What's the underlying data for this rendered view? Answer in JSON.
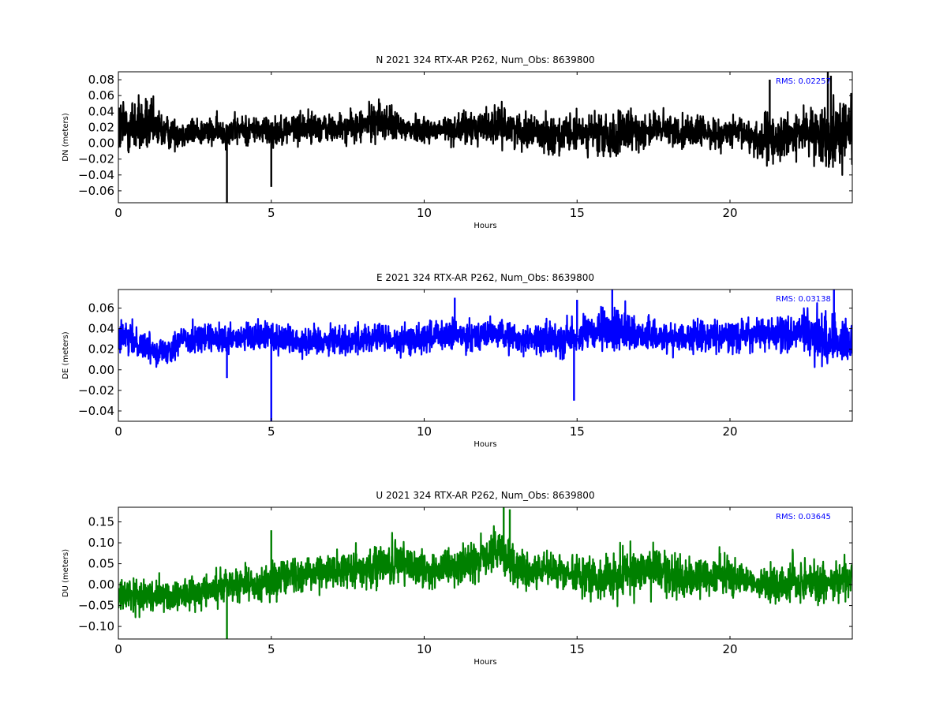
{
  "chart_data": [
    {
      "type": "line",
      "title": "N 2021 324 RTX-AR  P262, Num_Obs: 8639800",
      "xlabel": "Hours",
      "ylabel": "DN (meters)",
      "xlim": [
        0,
        24
      ],
      "ylim": [
        -0.075,
        0.09
      ],
      "xticks": [
        0,
        5,
        10,
        15,
        20
      ],
      "xtick_labels": [
        "0",
        "5",
        "10",
        "15",
        "20"
      ],
      "yticks": [
        -0.06,
        -0.04,
        -0.02,
        0.0,
        0.02,
        0.04,
        0.06,
        0.08
      ],
      "ytick_labels": [
        "−0.06",
        "−0.04",
        "−0.02",
        "0.00",
        "0.02",
        "0.04",
        "0.06",
        "0.08"
      ],
      "annotation": "RMS:  0.02257",
      "color": "#000000",
      "grid": false,
      "series": [
        {
          "x": [
            0,
            0.5,
            1,
            1.5,
            2,
            2.5,
            3,
            3.5,
            4,
            4.5,
            5,
            5.5,
            6,
            6.5,
            7,
            7.5,
            8,
            8.5,
            9,
            9.5,
            10,
            10.5,
            11,
            11.5,
            12,
            12.5,
            13,
            13.5,
            14,
            14.5,
            15,
            15.5,
            16,
            16.5,
            17,
            17.5,
            18,
            18.5,
            19,
            19.5,
            20,
            20.5,
            21,
            21.5,
            22,
            22.5,
            23,
            23.5,
            24
          ],
          "y": [
            0.02,
            0.022,
            0.02,
            0.015,
            0.012,
            0.015,
            0.014,
            0.015,
            0.016,
            0.018,
            0.015,
            0.018,
            0.02,
            0.02,
            0.018,
            0.019,
            0.022,
            0.03,
            0.022,
            0.018,
            0.018,
            0.016,
            0.018,
            0.019,
            0.022,
            0.022,
            0.018,
            0.014,
            0.012,
            0.01,
            0.012,
            0.015,
            0.005,
            0.012,
            0.015,
            0.018,
            0.016,
            0.015,
            0.015,
            0.012,
            0.012,
            0.012,
            0.005,
            0.005,
            0.01,
            0.015,
            0.01,
            0.015,
            0.02
          ],
          "amp": [
            0.035,
            0.035,
            0.03,
            0.02,
            0.015,
            0.016,
            0.015,
            0.016,
            0.016,
            0.016,
            0.016,
            0.016,
            0.017,
            0.017,
            0.016,
            0.016,
            0.018,
            0.022,
            0.018,
            0.016,
            0.015,
            0.015,
            0.016,
            0.018,
            0.02,
            0.02,
            0.018,
            0.018,
            0.02,
            0.022,
            0.02,
            0.02,
            0.028,
            0.024,
            0.02,
            0.019,
            0.018,
            0.018,
            0.017,
            0.016,
            0.016,
            0.017,
            0.026,
            0.028,
            0.022,
            0.022,
            0.03,
            0.04,
            0.035
          ]
        }
      ],
      "spikes": [
        {
          "x": 3.55,
          "y": -0.075
        },
        {
          "x": 5.0,
          "y": -0.055
        },
        {
          "x": 21.3,
          "y": 0.08
        },
        {
          "x": 23.2,
          "y": 0.09
        },
        {
          "x": 23.3,
          "y": 0.085
        }
      ]
    },
    {
      "type": "line",
      "title": "E 2021 324 RTX-AR  P262, Num_Obs: 8639800",
      "xlabel": "Hours",
      "ylabel": "DE (meters)",
      "xlim": [
        0,
        24
      ],
      "ylim": [
        -0.05,
        0.078
      ],
      "xticks": [
        0,
        5,
        10,
        15,
        20
      ],
      "xtick_labels": [
        "0",
        "5",
        "10",
        "15",
        "20"
      ],
      "yticks": [
        -0.04,
        -0.02,
        0.0,
        0.02,
        0.04,
        0.06
      ],
      "ytick_labels": [
        "−0.04",
        "−0.02",
        "0.00",
        "0.02",
        "0.04",
        "0.06"
      ],
      "annotation": "RMS:  0.03138",
      "color": "#0000ff",
      "grid": false,
      "series": [
        {
          "x": [
            0,
            0.5,
            1,
            1.5,
            2,
            2.5,
            3,
            3.5,
            4,
            4.5,
            5,
            5.5,
            6,
            6.5,
            7,
            7.5,
            8,
            8.5,
            9,
            9.5,
            10,
            10.5,
            11,
            11.5,
            12,
            12.5,
            13,
            13.5,
            14,
            14.5,
            15,
            15.5,
            16,
            16.5,
            17,
            17.5,
            18,
            18.5,
            19,
            19.5,
            20,
            20.5,
            21,
            21.5,
            22,
            22.5,
            23,
            23.5,
            24
          ],
          "y": [
            0.032,
            0.028,
            0.022,
            0.018,
            0.028,
            0.032,
            0.03,
            0.028,
            0.03,
            0.032,
            0.033,
            0.03,
            0.028,
            0.028,
            0.03,
            0.028,
            0.03,
            0.032,
            0.028,
            0.028,
            0.032,
            0.032,
            0.033,
            0.034,
            0.035,
            0.035,
            0.03,
            0.03,
            0.03,
            0.03,
            0.032,
            0.035,
            0.038,
            0.04,
            0.035,
            0.033,
            0.032,
            0.032,
            0.032,
            0.033,
            0.032,
            0.034,
            0.035,
            0.034,
            0.035,
            0.035,
            0.03,
            0.028,
            0.03
          ],
          "amp": [
            0.014,
            0.013,
            0.012,
            0.012,
            0.013,
            0.013,
            0.012,
            0.012,
            0.012,
            0.013,
            0.015,
            0.013,
            0.012,
            0.013,
            0.013,
            0.013,
            0.013,
            0.013,
            0.012,
            0.012,
            0.014,
            0.014,
            0.014,
            0.013,
            0.012,
            0.012,
            0.012,
            0.012,
            0.013,
            0.015,
            0.015,
            0.015,
            0.018,
            0.018,
            0.014,
            0.013,
            0.013,
            0.013,
            0.013,
            0.013,
            0.013,
            0.013,
            0.013,
            0.014,
            0.016,
            0.02,
            0.022,
            0.02,
            0.016
          ]
        }
      ],
      "spikes": [
        {
          "x": 3.55,
          "y": -0.008
        },
        {
          "x": 5.0,
          "y": -0.05
        },
        {
          "x": 11.0,
          "y": 0.07
        },
        {
          "x": 14.9,
          "y": -0.03
        },
        {
          "x": 15.0,
          "y": 0.068
        },
        {
          "x": 16.15,
          "y": 0.078
        },
        {
          "x": 23.4,
          "y": 0.078
        }
      ]
    },
    {
      "type": "line",
      "title": "U 2021 324 RTX-AR  P262, Num_Obs: 8639800",
      "xlabel": "Hours",
      "ylabel": "DU (meters)",
      "xlim": [
        0,
        24
      ],
      "ylim": [
        -0.13,
        0.185
      ],
      "xticks": [
        0,
        5,
        10,
        15,
        20
      ],
      "xtick_labels": [
        "0",
        "5",
        "10",
        "15",
        "20"
      ],
      "yticks": [
        -0.1,
        -0.05,
        0.0,
        0.05,
        0.1,
        0.15
      ],
      "ytick_labels": [
        "−0.10",
        "−0.05",
        "0.00",
        "0.05",
        "0.10",
        "0.15"
      ],
      "annotation": "RMS:  0.03645",
      "color": "#008000",
      "grid": false,
      "series": [
        {
          "x": [
            0,
            0.5,
            1,
            1.5,
            2,
            2.5,
            3,
            3.5,
            4,
            4.5,
            5,
            5.5,
            6,
            6.5,
            7,
            7.5,
            8,
            8.5,
            9,
            9.5,
            10,
            10.5,
            11,
            11.5,
            12,
            12.5,
            13,
            13.5,
            14,
            14.5,
            15,
            15.5,
            16,
            16.5,
            17,
            17.5,
            18,
            18.5,
            19,
            19.5,
            20,
            20.5,
            21,
            21.5,
            22,
            22.5,
            23,
            23.5,
            24
          ],
          "y": [
            -0.02,
            -0.03,
            -0.025,
            -0.03,
            -0.025,
            -0.02,
            -0.01,
            0.0,
            0.005,
            0.0,
            0.01,
            0.02,
            0.025,
            0.03,
            0.035,
            0.035,
            0.04,
            0.045,
            0.05,
            0.05,
            0.04,
            0.03,
            0.04,
            0.055,
            0.065,
            0.08,
            0.04,
            0.03,
            0.035,
            0.03,
            0.02,
            0.015,
            0.02,
            0.03,
            0.03,
            0.035,
            0.025,
            0.01,
            0.02,
            0.025,
            0.02,
            0.015,
            0.0,
            -0.005,
            0.005,
            0.01,
            0.0,
            0.01,
            0.015
          ],
          "amp": [
            0.04,
            0.038,
            0.035,
            0.035,
            0.033,
            0.033,
            0.035,
            0.035,
            0.035,
            0.035,
            0.04,
            0.038,
            0.035,
            0.035,
            0.037,
            0.037,
            0.038,
            0.04,
            0.045,
            0.045,
            0.04,
            0.04,
            0.04,
            0.042,
            0.045,
            0.05,
            0.05,
            0.04,
            0.04,
            0.04,
            0.04,
            0.042,
            0.045,
            0.045,
            0.045,
            0.048,
            0.05,
            0.045,
            0.04,
            0.04,
            0.04,
            0.035,
            0.03,
            0.04,
            0.05,
            0.05,
            0.045,
            0.04,
            0.035
          ]
        }
      ],
      "spikes": [
        {
          "x": 3.55,
          "y": -0.13
        },
        {
          "x": 5.0,
          "y": 0.13
        },
        {
          "x": 12.6,
          "y": 0.185
        },
        {
          "x": 12.8,
          "y": 0.18
        }
      ]
    }
  ]
}
